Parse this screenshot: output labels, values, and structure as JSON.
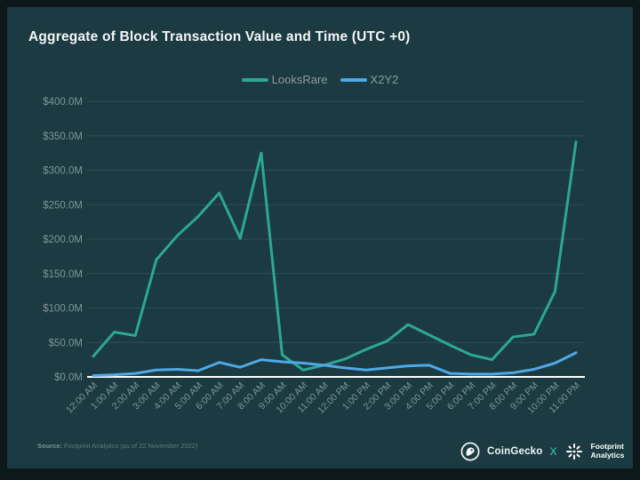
{
  "slide": {
    "title": "Aggregate of Block Transaction Value and Time (UTC +0)",
    "source_label": "Source:",
    "source_text": "Footprint Analytics (as of 22 November 2022)",
    "branding": {
      "coingecko": "CoinGecko",
      "collab_x": "X",
      "footprint_line1": "Footprint",
      "footprint_line2": "Analytics",
      "collab_x_color": "#2ca795"
    }
  },
  "chart_data": {
    "type": "line",
    "title": "Aggregate of Block Transaction Value and Time (UTC +0)",
    "xlabel": "",
    "ylabel": "",
    "ylim": [
      0,
      400
    ],
    "grid": true,
    "legend_position": "top",
    "categories": [
      "12:00 AM",
      "1:00 AM",
      "2:00 AM",
      "3:00 AM",
      "4:00 AM",
      "5:00 AM",
      "6:00 AM",
      "7:00 AM",
      "8:00 AM",
      "9:00 AM",
      "10:00 AM",
      "11:00 AM",
      "12:00 PM",
      "1:00 PM",
      "2:00 PM",
      "3:00 PM",
      "4:00 PM",
      "5:00 PM",
      "6:00 PM",
      "7:00 PM",
      "8:00 PM",
      "9:00 PM",
      "10:00 PM",
      "11:00 PM"
    ],
    "series": [
      {
        "name": "LooksRare",
        "color": "#2ca795",
        "values": [
          30,
          65,
          60,
          170,
          205,
          233,
          267,
          201,
          325,
          32,
          10,
          17,
          26,
          40,
          52,
          76,
          61,
          46,
          32,
          25,
          58,
          62,
          124,
          341
        ]
      },
      {
        "name": "X2Y2",
        "color": "#4fa8e8",
        "values": [
          2,
          3,
          5,
          10,
          11,
          9,
          21,
          14,
          25,
          22,
          20,
          17,
          13,
          10,
          13,
          16,
          17,
          5,
          4,
          4,
          6,
          11,
          20,
          35
        ]
      }
    ],
    "y_ticks": {
      "values": [
        0,
        50,
        100,
        150,
        200,
        250,
        300,
        350,
        400
      ],
      "labels": [
        "$0.0M",
        "$50.0M",
        "$100.0M",
        "$150.0M",
        "$200.0M",
        "$250.0M",
        "$300.0M",
        "$350.0M",
        "$400.0M"
      ]
    },
    "colors": {
      "background": "#1c3a41",
      "frame": "#0d181b",
      "grid": "#2a4e55",
      "axis_text": "#7e949a",
      "zero_line": "#ffffff"
    }
  }
}
